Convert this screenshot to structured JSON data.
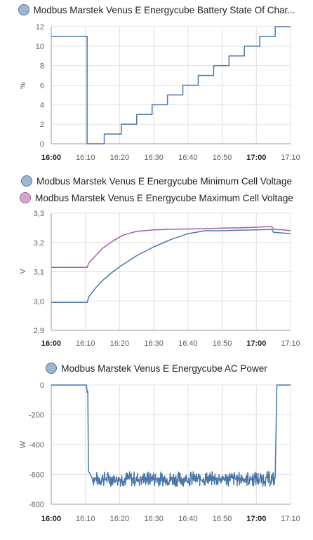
{
  "colors": {
    "blue": "#4a77a8",
    "purple": "#a85aa8",
    "grid": "#e0e0e0",
    "axis": "#9e9e9e"
  },
  "x_ticks": [
    "16:00",
    "16:10",
    "16:20",
    "16:30",
    "16:40",
    "16:50",
    "17:00",
    "17:10"
  ],
  "x_ticks_bold": [
    "16:00",
    "17:00"
  ],
  "chart_data": [
    {
      "type": "line",
      "legend": [
        "Modbus Marstek Venus E Energycube Battery State Of Char..."
      ],
      "ylabel": "%",
      "ylim": [
        0,
        12
      ],
      "yticks": [
        "0",
        "2",
        "4",
        "6",
        "8",
        "10",
        "12"
      ],
      "ytick_values": [
        0,
        2,
        4,
        6,
        8,
        10,
        12
      ],
      "xlim_minutes": [
        0,
        70
      ],
      "series": [
        {
          "color": "#4a77a8",
          "step": true,
          "x": [
            0,
            10.5,
            15.5,
            20.5,
            25,
            29.5,
            34,
            38.5,
            43,
            47.5,
            52,
            56.5,
            61,
            65.5,
            70
          ],
          "y": [
            11,
            0,
            1,
            2,
            3,
            4,
            5,
            6,
            7,
            8,
            9,
            10,
            11,
            12,
            12
          ]
        }
      ]
    },
    {
      "type": "line",
      "legend": [
        "Modbus Marstek Venus E Energycube Minimum Cell Voltage",
        "Modbus Marstek Venus E Energycube Maximum Cell Voltage"
      ],
      "ylabel": "V",
      "ylim": [
        2.9,
        3.3
      ],
      "yticks": [
        "2,9",
        "3,0",
        "3,1",
        "3,2",
        "3,3"
      ],
      "ytick_values": [
        2.9,
        3.0,
        3.1,
        3.2,
        3.3
      ],
      "xlim_minutes": [
        0,
        70
      ],
      "series": [
        {
          "color": "#4a77a8",
          "x": [
            0,
            10.5,
            11,
            13,
            15,
            18,
            21,
            25,
            30,
            35,
            40,
            45,
            50,
            55,
            60,
            64.5,
            65,
            68,
            70
          ],
          "y": [
            2.995,
            2.995,
            3.015,
            3.045,
            3.07,
            3.1,
            3.125,
            3.155,
            3.185,
            3.21,
            3.23,
            3.24,
            3.24,
            3.242,
            3.243,
            3.245,
            3.235,
            3.232,
            3.23
          ]
        },
        {
          "color": "#a85aa8",
          "x": [
            0,
            10.5,
            11,
            13,
            15,
            18,
            21,
            25,
            30,
            35,
            40,
            45,
            50,
            55,
            60,
            64.5,
            65,
            68,
            70
          ],
          "y": [
            3.115,
            3.115,
            3.13,
            3.155,
            3.18,
            3.205,
            3.225,
            3.238,
            3.243,
            3.245,
            3.246,
            3.247,
            3.249,
            3.25,
            3.252,
            3.255,
            3.245,
            3.243,
            3.24
          ]
        }
      ]
    },
    {
      "type": "line",
      "legend": [
        "Modbus Marstek Venus E Energycube AC Power"
      ],
      "ylabel": "W",
      "ylim": [
        -800,
        0
      ],
      "yticks": [
        "-800",
        "-600",
        "-400",
        "-200",
        "0"
      ],
      "ytick_values": [
        -800,
        -600,
        -400,
        -200,
        0
      ],
      "xlim_minutes": [
        0,
        70
      ],
      "series": [
        {
          "color": "#4a77a8",
          "noisy": true,
          "x": [
            0,
            10.3,
            10.5,
            10.7,
            10.9,
            11.2,
            12,
            65.3,
            65.5,
            66,
            70
          ],
          "y": [
            0,
            0,
            -50,
            -40,
            -580,
            -590,
            -625,
            -640,
            -620,
            0,
            0
          ],
          "noise_range": [
            12,
            65.3
          ],
          "noise_base": -630,
          "noise_amp": 50
        }
      ]
    }
  ]
}
